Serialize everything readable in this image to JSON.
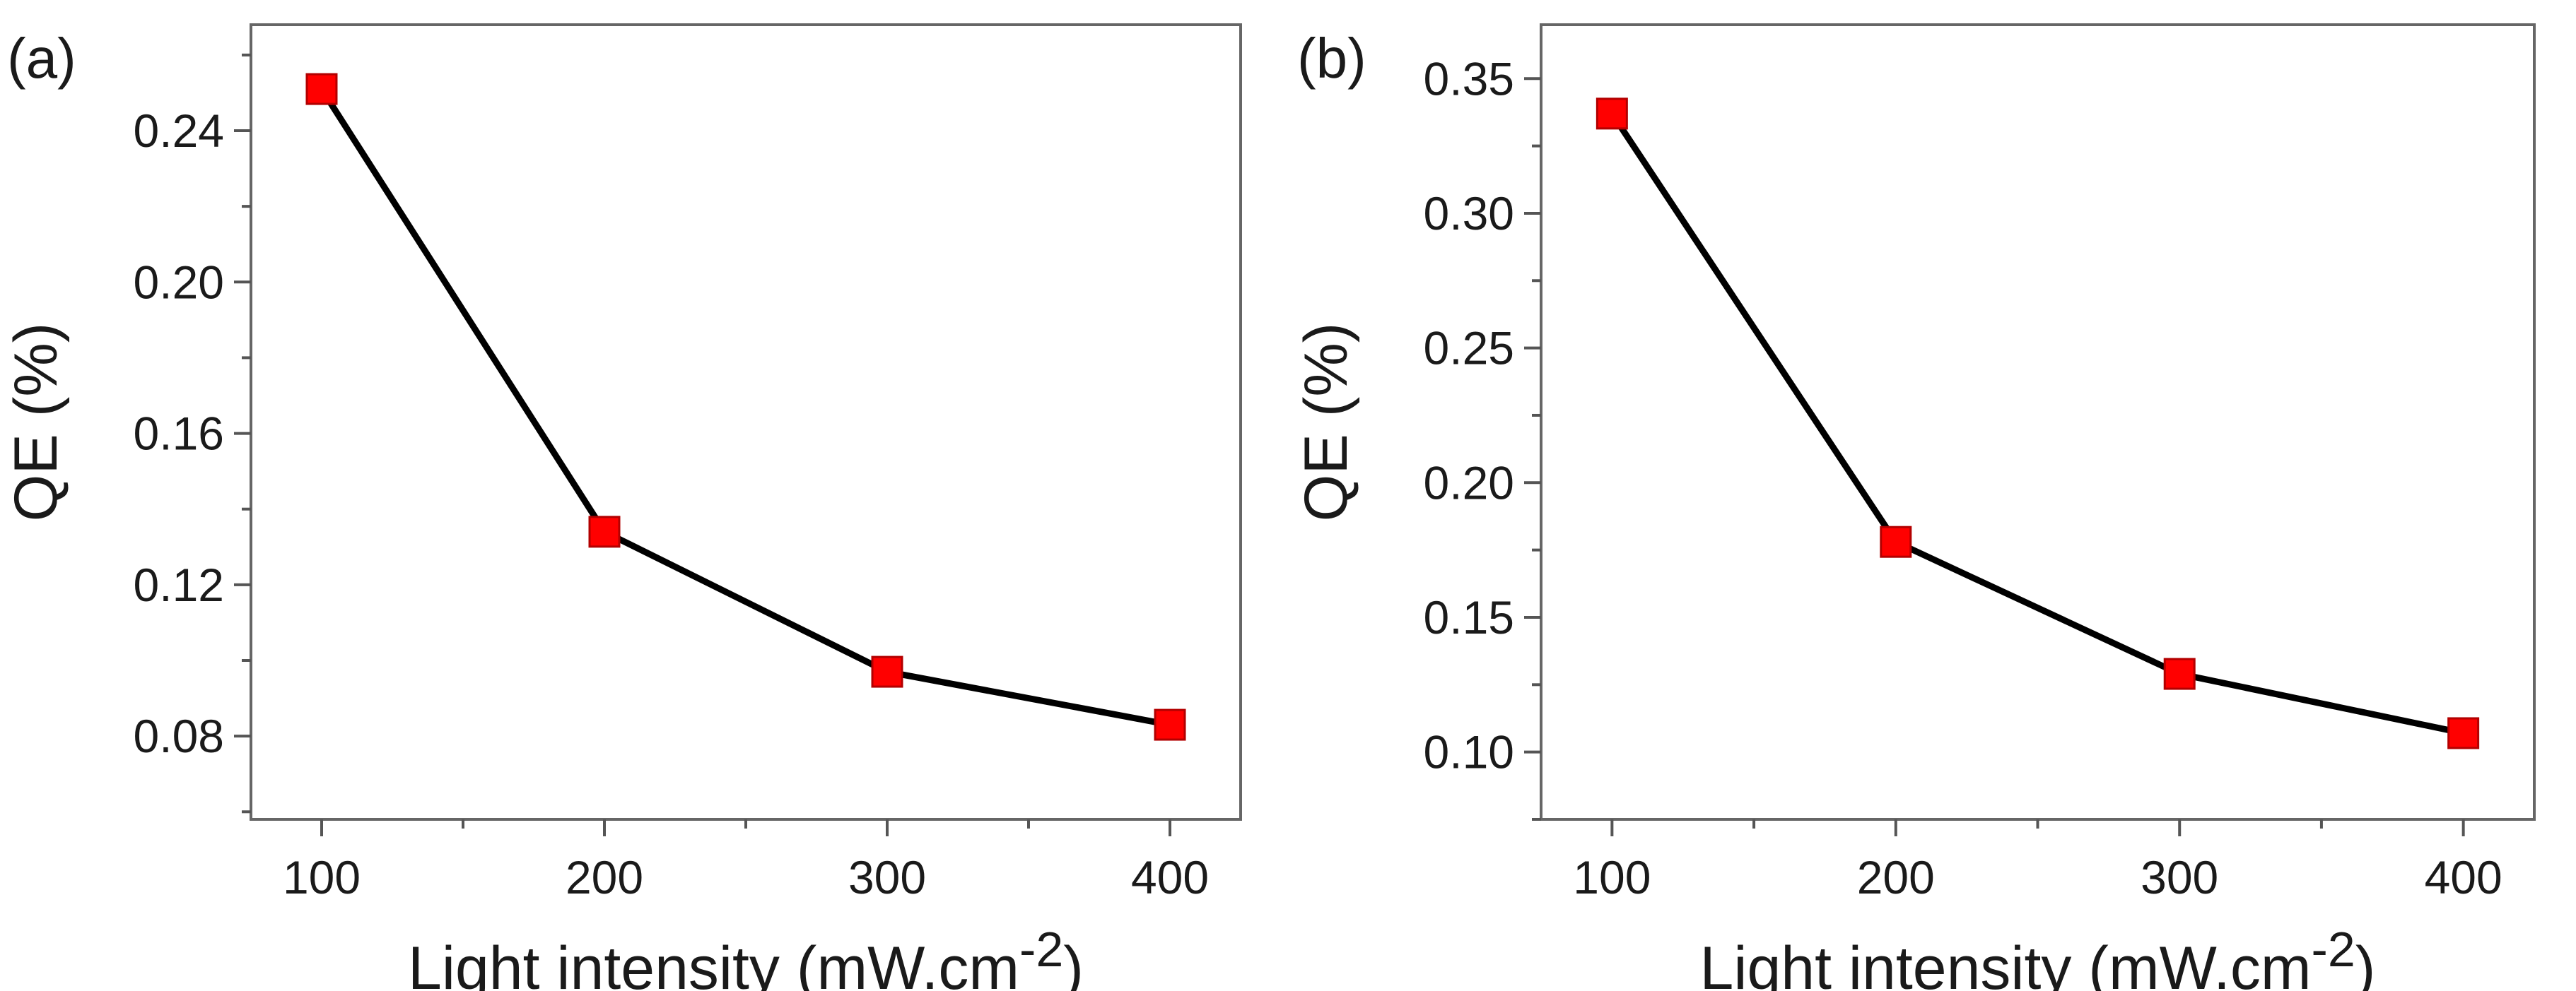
{
  "chart_data": [
    {
      "type": "line",
      "panel_label": "(a)",
      "xlabel": "Light intensity (mW.cm",
      "xlabel_superscript": "-2",
      "xlabel_close": ")",
      "ylabel": "QE (%)",
      "x": [
        100,
        200,
        300,
        400
      ],
      "xticks": [
        100,
        200,
        300,
        400
      ],
      "xtick_labels": [
        "100",
        "200",
        "300",
        "400"
      ],
      "xlim": [
        75,
        425
      ],
      "yticks": [
        0.08,
        0.12,
        0.16,
        0.2,
        0.24
      ],
      "ytick_labels": [
        "0.08",
        "0.12",
        "0.16",
        "0.20",
        "0.24"
      ],
      "ylim": [
        0.058,
        0.268
      ],
      "series": [
        {
          "name": "QE",
          "values": [
            0.251,
            0.134,
            0.097,
            0.083
          ]
        }
      ],
      "grid": false,
      "marker": "square",
      "colors": {
        "line": "#000000",
        "marker": "#ff0000",
        "frame": "#666666"
      }
    },
    {
      "type": "line",
      "panel_label": "(b)",
      "xlabel": "Light intensity (mW.cm",
      "xlabel_superscript": "-2",
      "xlabel_close": ")",
      "ylabel": "QE (%)",
      "x": [
        100,
        200,
        300,
        400
      ],
      "xticks": [
        100,
        200,
        300,
        400
      ],
      "xtick_labels": [
        "100",
        "200",
        "300",
        "400"
      ],
      "xlim": [
        75,
        425
      ],
      "yticks": [
        0.1,
        0.15,
        0.2,
        0.25,
        0.3,
        0.35
      ],
      "ytick_labels": [
        "0.10",
        "0.15",
        "0.20",
        "0.25",
        "0.30",
        "0.35"
      ],
      "ylim": [
        0.075,
        0.37
      ],
      "series": [
        {
          "name": "QE",
          "values": [
            0.337,
            0.178,
            0.129,
            0.107
          ]
        }
      ],
      "grid": false,
      "marker": "square",
      "colors": {
        "line": "#000000",
        "marker": "#ff0000",
        "frame": "#666666"
      }
    }
  ]
}
